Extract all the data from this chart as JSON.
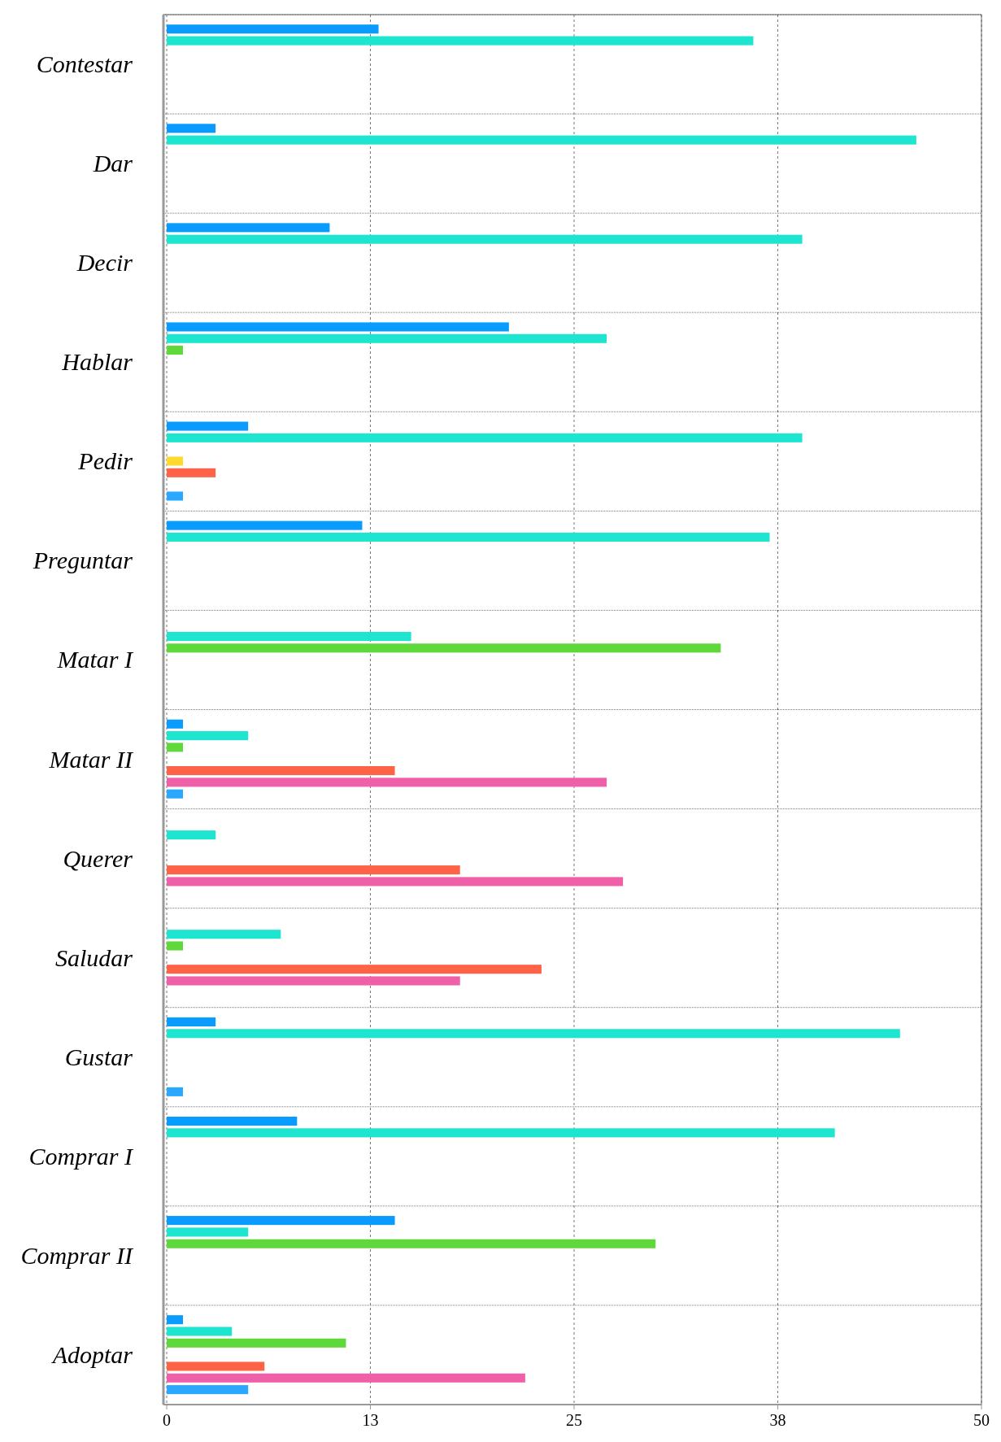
{
  "chart_data": {
    "type": "bar",
    "orientation": "horizontal",
    "categories": [
      "Contestar",
      "Dar",
      "Decir",
      "Hablar",
      "Pedir",
      "Preguntar",
      "Matar I",
      "Matar II",
      "Querer",
      "Saludar",
      "Gustar",
      "Comprar I",
      "Comprar II",
      "Adoptar"
    ],
    "series": [
      {
        "color": "#0a9bff",
        "values": [
          13,
          3,
          10,
          21,
          5,
          12,
          null,
          1,
          null,
          null,
          3,
          8,
          14,
          1
        ]
      },
      {
        "color": "#1de5cf",
        "values": [
          36,
          46,
          39,
          27,
          39,
          37,
          15,
          5,
          3,
          7,
          45,
          41,
          5,
          4
        ]
      },
      {
        "color": "#5ed83a",
        "values": [
          null,
          null,
          null,
          1,
          null,
          null,
          34,
          1,
          null,
          1,
          null,
          null,
          30,
          11
        ]
      },
      {
        "color": "#ffd92e",
        "values": [
          null,
          null,
          null,
          null,
          1,
          null,
          null,
          null,
          null,
          null,
          null,
          null,
          null,
          null
        ]
      },
      {
        "color": "#ff6347",
        "values": [
          null,
          null,
          null,
          null,
          3,
          null,
          null,
          14,
          18,
          23,
          null,
          null,
          null,
          6
        ]
      },
      {
        "color": "#f060a8",
        "values": [
          null,
          null,
          null,
          null,
          null,
          null,
          null,
          27,
          28,
          18,
          null,
          null,
          null,
          22
        ]
      },
      {
        "color": "#2aa8ff",
        "values": [
          null,
          null,
          null,
          null,
          1,
          null,
          null,
          1,
          null,
          null,
          1,
          null,
          null,
          5
        ]
      }
    ],
    "xlim": [
      0,
      50
    ],
    "xticks": [
      0,
      {
        "value": 12.5,
        "label": "13"
      },
      25,
      {
        "value": 37.5,
        "label": "38"
      },
      50
    ],
    "grid": "x"
  }
}
